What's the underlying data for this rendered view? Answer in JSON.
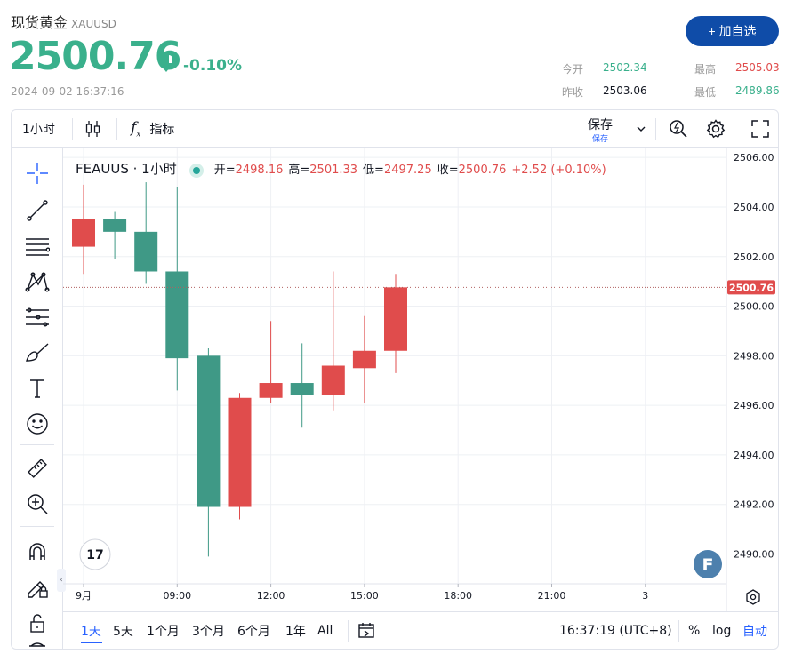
{
  "header": {
    "name": "现货黄金",
    "symbol": "XAUUSD",
    "price": "2500.76",
    "change_pct": "-0.10%",
    "datetime": "2024-09-02 16:37:16",
    "add_button": "+ 加自选",
    "stats": {
      "open_label": "今开",
      "open_value": "2502.34",
      "prev_close_label": "昨收",
      "prev_close_value": "2503.06",
      "high_label": "最高",
      "high_value": "2505.03",
      "low_label": "最低",
      "low_value": "2489.86"
    }
  },
  "toolbar": {
    "interval": "1小时",
    "indicators": "指标",
    "save_top": "保存",
    "save_bottom": "保存"
  },
  "legend": {
    "symbol": "FEAUUS · 1小时",
    "open_label": "开=",
    "open_value": "2498.16",
    "high_label": "高=",
    "high_value": "2501.33",
    "low_label": "低=",
    "low_value": "2497.25",
    "close_label": "收=",
    "close_value": "2500.76",
    "change": "+2.52 (+0.10%)"
  },
  "bottombar": {
    "ranges": [
      "1天",
      "5天",
      "1个月",
      "3个月",
      "6个月",
      "1年",
      "All"
    ],
    "active_range": "1天",
    "clock": "16:37:19 (UTC+8)",
    "percent": "%",
    "log": "log",
    "auto": "自动"
  },
  "colors": {
    "up": "#e04c4c",
    "down": "#3f9986",
    "accent": "#2962ff",
    "button": "#0f4ca8"
  },
  "icons": {
    "logo": "tradingview-logo-icon",
    "badge": "f-badge-icon"
  },
  "chart_data": {
    "type": "candlestick",
    "current_price": 2500.76,
    "current_price_label": "2500.76",
    "ylim": [
      2488.8,
      2506.4
    ],
    "y_ticks": [
      2490,
      2492,
      2494,
      2496,
      2498,
      2500,
      2502,
      2504,
      2506
    ],
    "y_tick_labels": [
      "2490.00",
      "2492.00",
      "2494.00",
      "2496.00",
      "2498.00",
      "2500.00",
      "2502.00",
      "2504.00",
      "2506.00"
    ],
    "x_ticks": [
      {
        "label": "9月",
        "slot": 0
      },
      {
        "label": "09:00",
        "slot": 3
      },
      {
        "label": "12:00",
        "slot": 6
      },
      {
        "label": "15:00",
        "slot": 9
      },
      {
        "label": "18:00",
        "slot": 12
      },
      {
        "label": "21:00",
        "slot": 15
      },
      {
        "label": "3",
        "slot": 18
      }
    ],
    "candles": [
      {
        "o": 2502.4,
        "h": 2504.9,
        "l": 2501.3,
        "c": 2503.5
      },
      {
        "o": 2503.5,
        "h": 2503.8,
        "l": 2501.9,
        "c": 2503.0
      },
      {
        "o": 2503.0,
        "h": 2505.0,
        "l": 2500.9,
        "c": 2501.4
      },
      {
        "o": 2501.4,
        "h": 2504.8,
        "l": 2496.6,
        "c": 2497.9
      },
      {
        "o": 2498.0,
        "h": 2498.3,
        "l": 2489.9,
        "c": 2491.9
      },
      {
        "o": 2491.9,
        "h": 2496.5,
        "l": 2491.4,
        "c": 2496.3
      },
      {
        "o": 2496.3,
        "h": 2499.4,
        "l": 2496.1,
        "c": 2496.9
      },
      {
        "o": 2496.9,
        "h": 2498.5,
        "l": 2495.1,
        "c": 2496.4
      },
      {
        "o": 2496.4,
        "h": 2501.4,
        "l": 2495.8,
        "c": 2497.6
      },
      {
        "o": 2497.5,
        "h": 2499.6,
        "l": 2496.1,
        "c": 2498.2
      },
      {
        "o": 2498.2,
        "h": 2501.3,
        "l": 2497.3,
        "c": 2500.76
      }
    ]
  }
}
